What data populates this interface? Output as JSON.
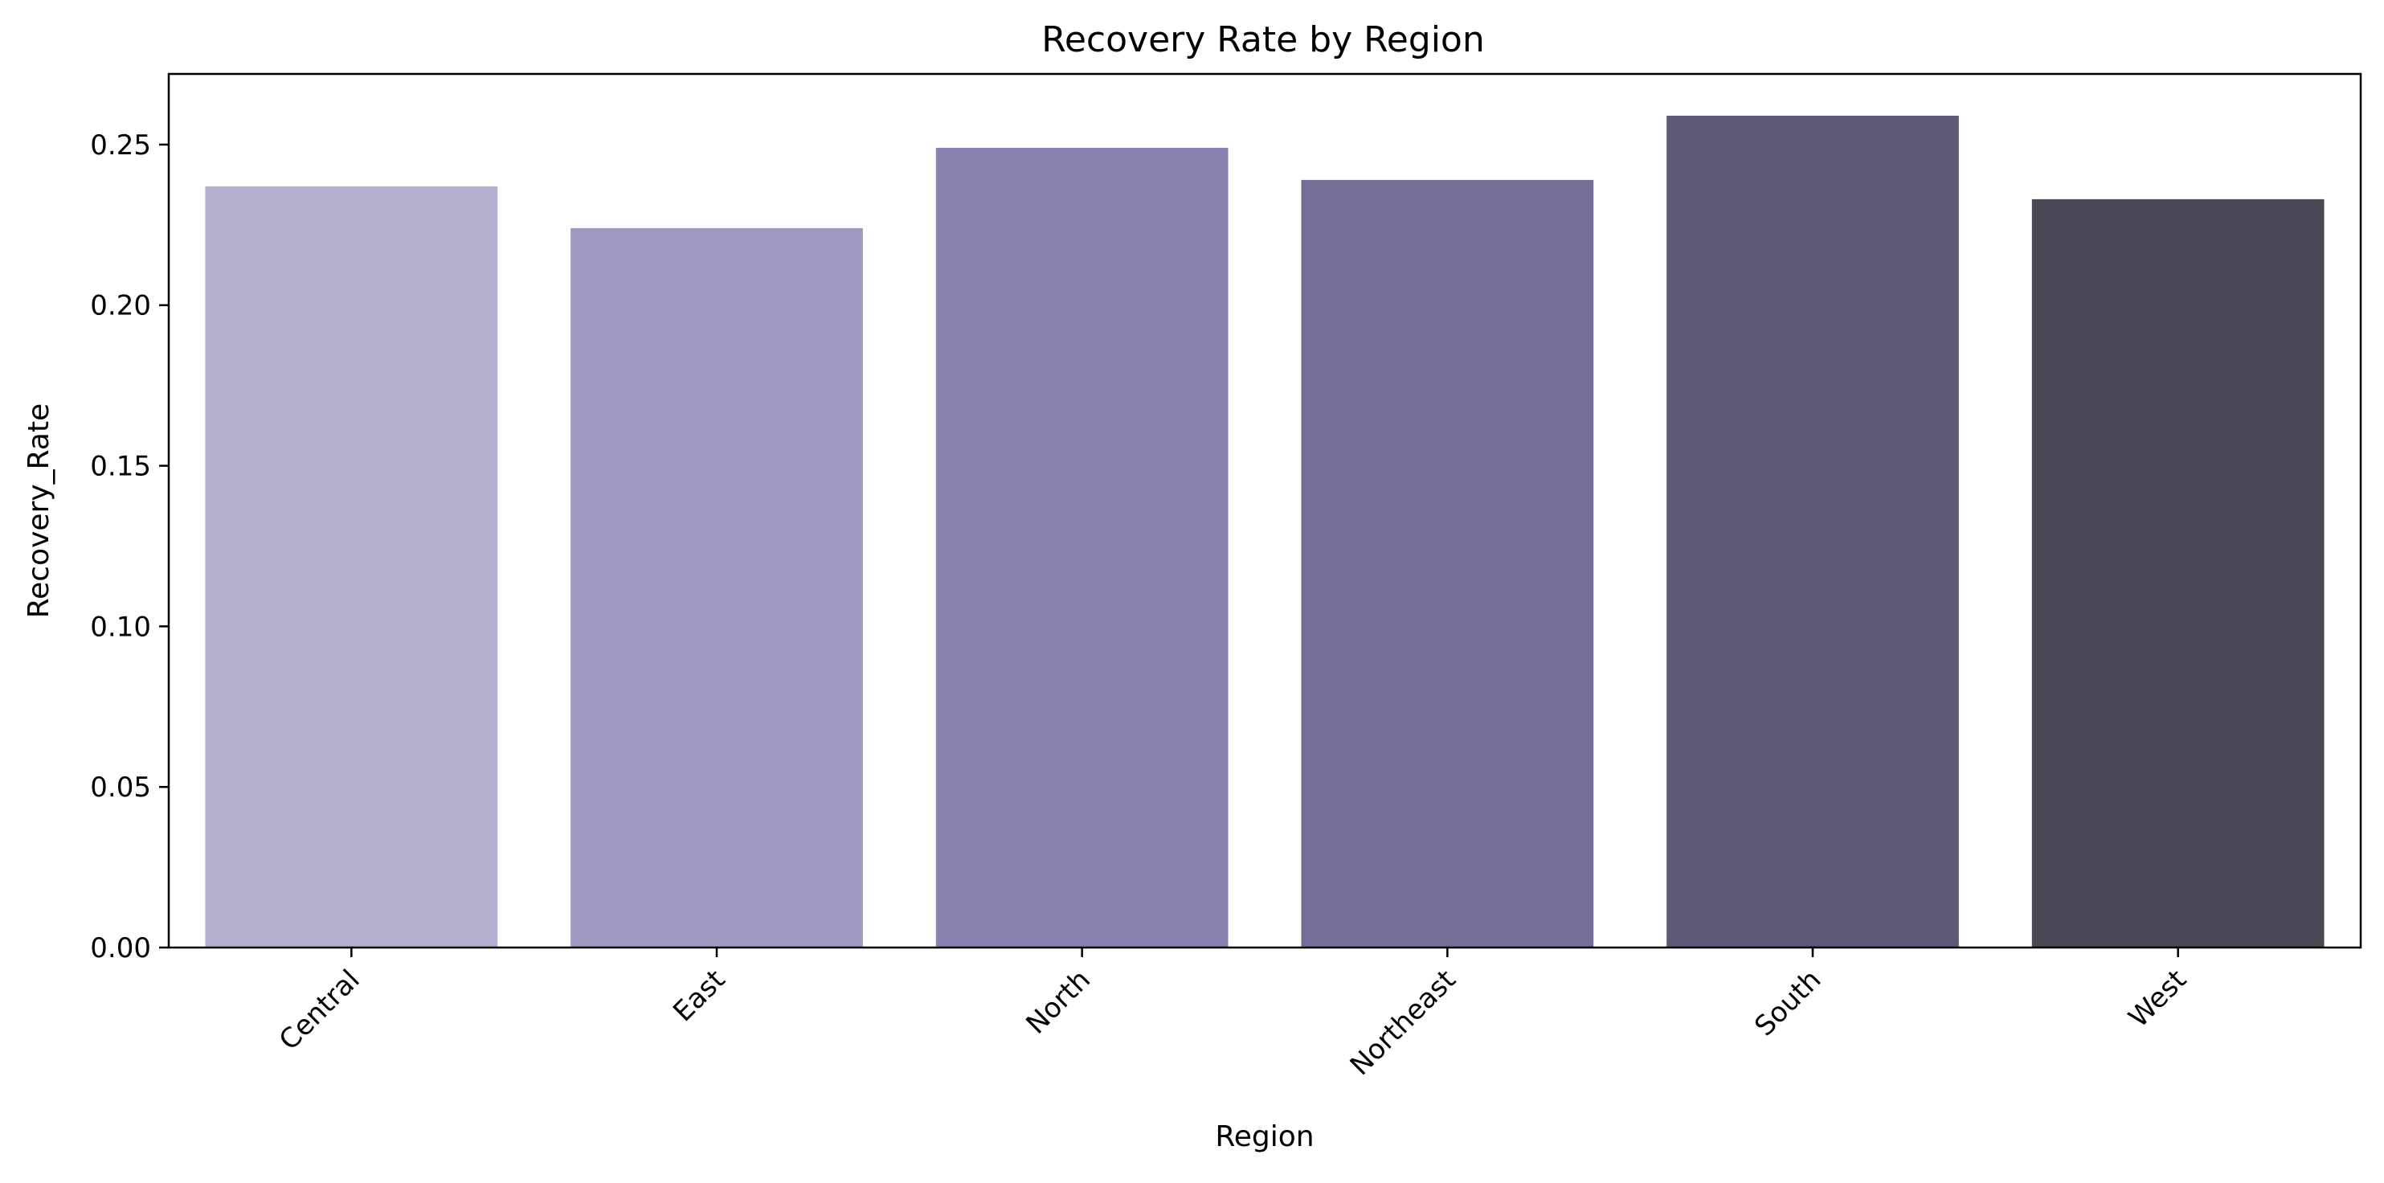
{
  "chart_data": {
    "type": "bar",
    "title": "Recovery Rate by Region",
    "xlabel": "Region",
    "ylabel": "Recovery_Rate",
    "categories": [
      "Central",
      "East",
      "North",
      "Northeast",
      "South",
      "West"
    ],
    "values": [
      0.237,
      0.224,
      0.249,
      0.239,
      0.259,
      0.233
    ],
    "ylim": [
      0,
      0.272
    ],
    "yticks": [
      "0.00",
      "0.05",
      "0.10",
      "0.15",
      "0.20",
      "0.25"
    ],
    "ytick_values": [
      0,
      0.05,
      0.1,
      0.15,
      0.2,
      0.25
    ],
    "colors": [
      "#b3afcf",
      "#9e99c1",
      "#8882b1",
      "#746d98",
      "#5f5977",
      "#4a4755"
    ],
    "grid": false,
    "legend": "none",
    "xtick_rotation": 45
  }
}
